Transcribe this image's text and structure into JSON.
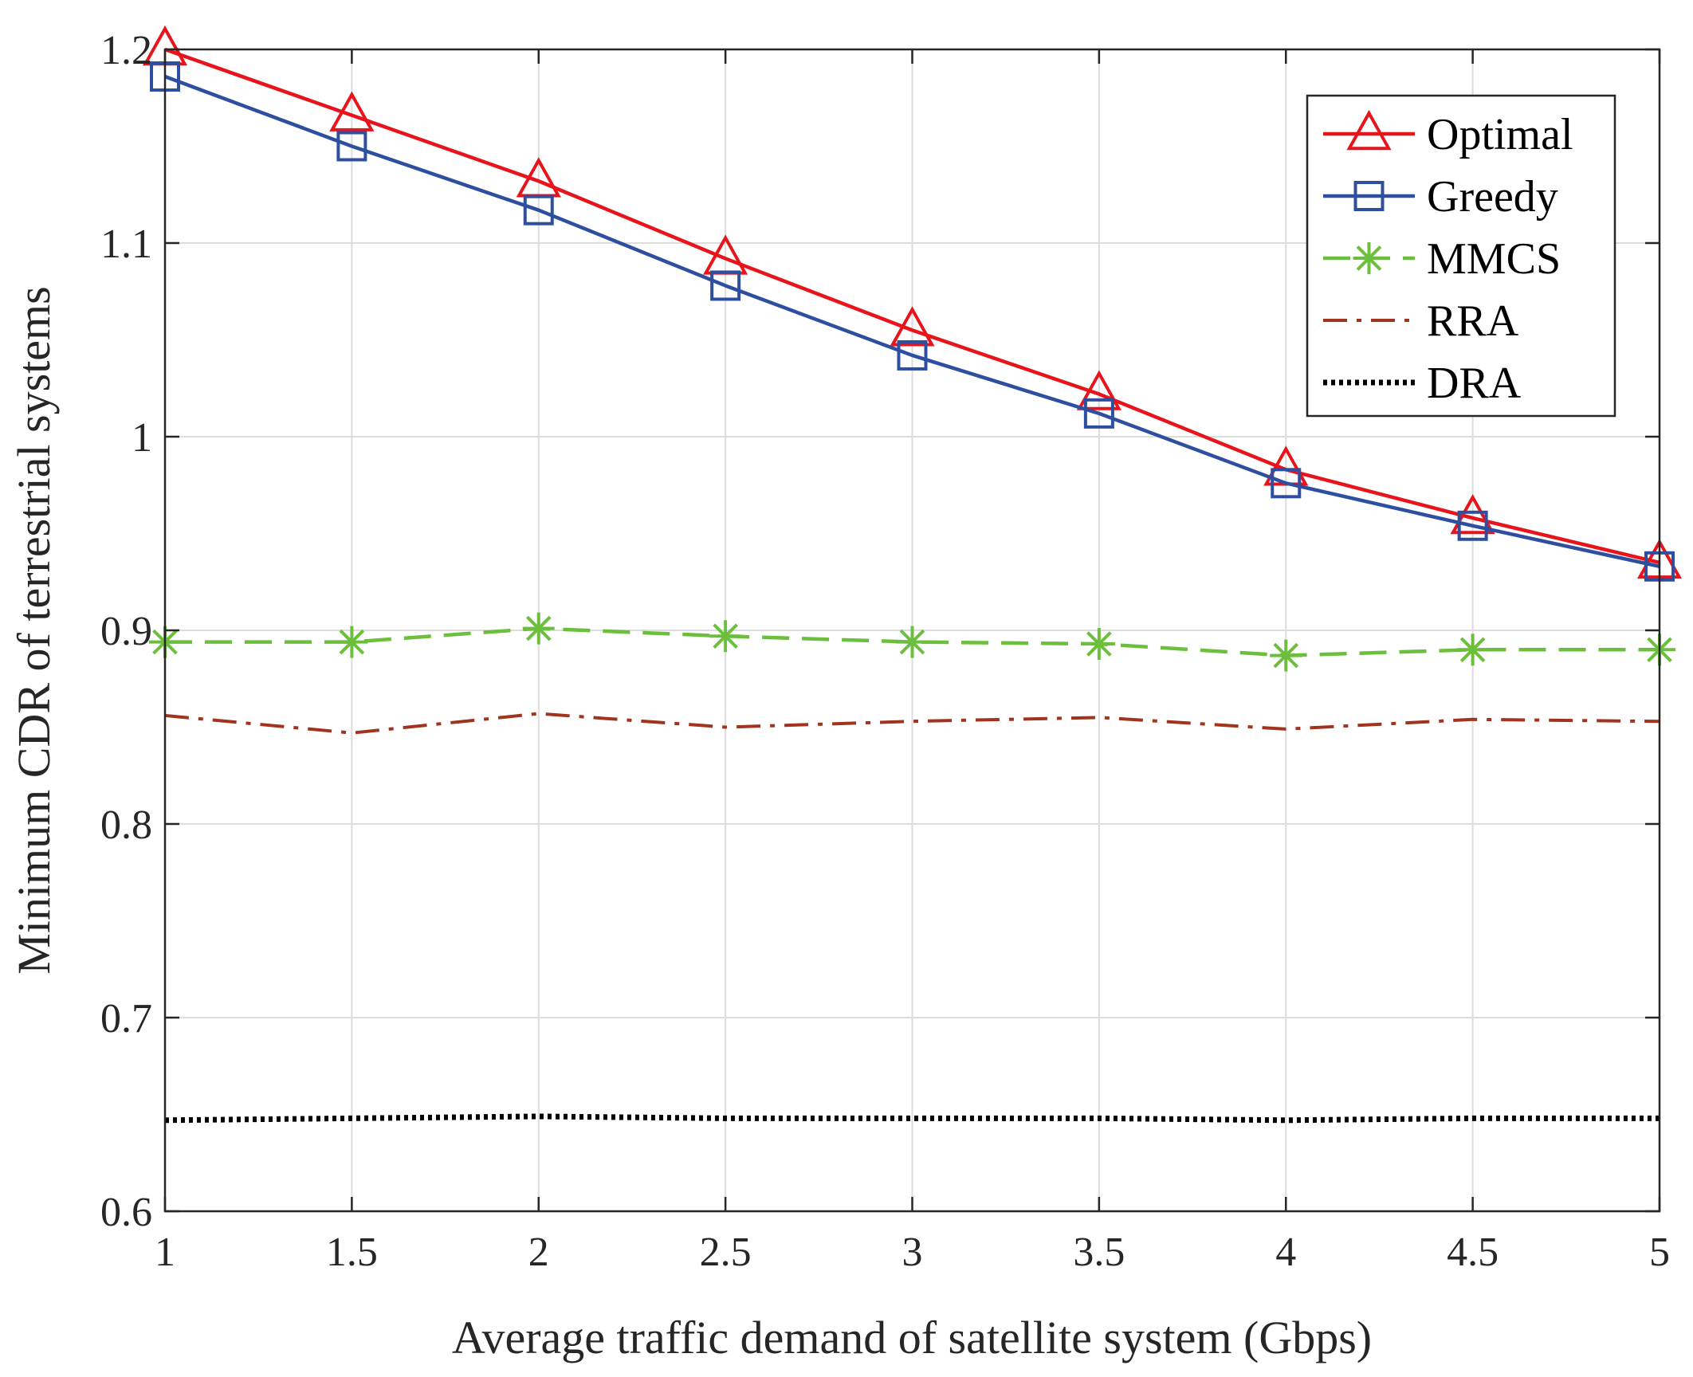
{
  "chart_data": {
    "type": "line",
    "title": "",
    "xlabel": "Average traffic demand of satellite system (Gbps)",
    "ylabel": "Minimum CDR of terrestrial systems",
    "xlim": [
      1,
      5
    ],
    "ylim": [
      0.6,
      1.2
    ],
    "x": [
      1,
      1.5,
      2,
      2.5,
      3,
      3.5,
      4,
      4.5,
      5
    ],
    "xticks": [
      1,
      1.5,
      2,
      2.5,
      3,
      3.5,
      4,
      4.5,
      5
    ],
    "xtick_labels": [
      "1",
      "1.5",
      "2",
      "2.5",
      "3",
      "3.5",
      "4",
      "4.5",
      "5"
    ],
    "yticks": [
      0.6,
      0.7,
      0.8,
      0.9,
      1.0,
      1.1,
      1.2
    ],
    "ytick_labels": [
      "0.6",
      "0.7",
      "0.8",
      "0.9",
      "1",
      "1.1",
      "1.2"
    ],
    "grid": true,
    "legend_position": "top-right",
    "series": [
      {
        "name": "Optimal",
        "color": "#e8141c",
        "marker": "triangle",
        "line_style": "solid",
        "values": [
          1.2,
          1.166,
          1.132,
          1.092,
          1.055,
          1.022,
          0.983,
          0.958,
          0.935
        ]
      },
      {
        "name": "Greedy",
        "color": "#2e4ea0",
        "marker": "square",
        "line_style": "solid",
        "values": [
          1.186,
          1.15,
          1.117,
          1.078,
          1.042,
          1.012,
          0.976,
          0.954,
          0.933
        ]
      },
      {
        "name": "MMCS",
        "color": "#6cbf3c",
        "marker": "asterisk",
        "line_style": "dashed",
        "values": [
          0.894,
          0.894,
          0.901,
          0.897,
          0.894,
          0.893,
          0.887,
          0.89,
          0.89
        ]
      },
      {
        "name": "RRA",
        "color": "#a0341e",
        "marker": "none",
        "line_style": "dashdot",
        "values": [
          0.856,
          0.847,
          0.857,
          0.85,
          0.853,
          0.855,
          0.849,
          0.854,
          0.853
        ]
      },
      {
        "name": "DRA",
        "color": "#000000",
        "marker": "none",
        "line_style": "dotted",
        "values": [
          0.647,
          0.648,
          0.649,
          0.648,
          0.648,
          0.648,
          0.647,
          0.648,
          0.648
        ]
      }
    ]
  }
}
